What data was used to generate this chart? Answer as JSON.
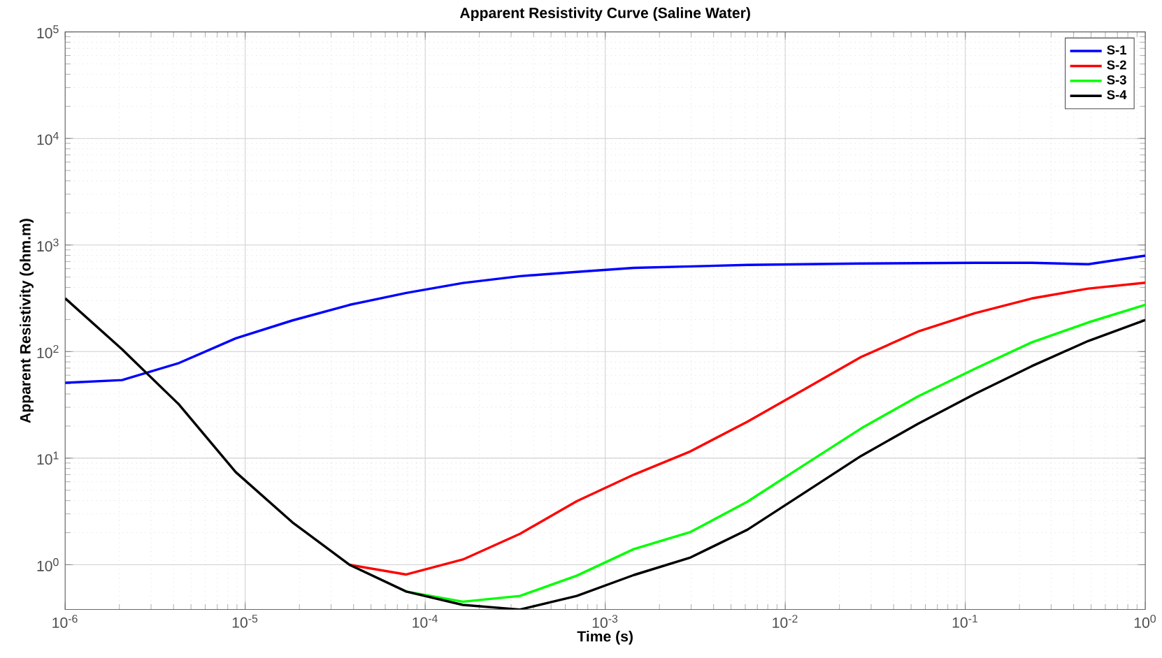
{
  "chart_data": {
    "type": "line",
    "title": "Apparent Resistivity Curve (Saline Water)",
    "xlabel": "Time (s)",
    "ylabel": "Apparent Resistivity (ohm.m)",
    "log": "xy",
    "grid": true,
    "legend": "top right",
    "x": [
      1e-06,
      2.07e-06,
      4.28e-06,
      8.86e-06,
      1.83e-05,
      3.79e-05,
      7.85e-05,
      0.000162,
      0.000336,
      0.000695,
      0.00144,
      0.00298,
      0.00616,
      0.0127,
      0.0264,
      0.0546,
      0.113,
      0.234,
      0.483,
      1
    ],
    "xlim": [
      1e-06,
      1
    ],
    "ylim": [
      0.38,
      100000
    ],
    "xticks": [
      {
        "value": 1e-06,
        "label": "10$^{-6}$"
      },
      {
        "value": 1e-05,
        "label": "10$^{-5}$"
      },
      {
        "value": 0.0001,
        "label": "10$^{-4}$"
      },
      {
        "value": 0.001,
        "label": "10$^{-3}$"
      },
      {
        "value": 0.01,
        "label": "10$^{-2}$"
      },
      {
        "value": 0.1,
        "label": "10$^{-1}$"
      },
      {
        "value": 1,
        "label": "10$^{0}$"
      }
    ],
    "yticks": [
      {
        "value": 1,
        "label": "10$^{0}$"
      },
      {
        "value": 10,
        "label": "10$^{1}$"
      },
      {
        "value": 100,
        "label": "10$^{2}$"
      },
      {
        "value": 1000,
        "label": "10$^{3}$"
      },
      {
        "value": 10000,
        "label": "10$^{4}$"
      },
      {
        "value": 100000,
        "label": "10$^{5}$"
      }
    ],
    "series": [
      {
        "name": "S-1",
        "color": "#0000ff",
        "values": [
          51,
          54,
          78,
          133,
          196,
          274,
          355,
          440,
          510,
          560,
          610,
          630,
          650,
          660,
          670,
          675,
          680,
          680,
          660,
          795
        ]
      },
      {
        "name": "S-2",
        "color": "#ff0000",
        "values": [
          null,
          null,
          null,
          null,
          null,
          1.0,
          0.81,
          1.12,
          1.95,
          3.95,
          7,
          11.6,
          22,
          44,
          89,
          154,
          229,
          315,
          390,
          443
        ]
      },
      {
        "name": "S-3",
        "color": "#00ff00",
        "values": [
          null,
          null,
          null,
          null,
          null,
          null,
          0.56,
          0.45,
          0.51,
          0.79,
          1.4,
          2.03,
          3.9,
          8.6,
          19,
          38,
          69,
          122,
          188,
          275
        ]
      },
      {
        "name": "S-4",
        "color": "#000000",
        "values": [
          316,
          105,
          32,
          7.4,
          2.5,
          1.0,
          0.56,
          0.42,
          0.38,
          0.51,
          0.8,
          1.17,
          2.13,
          4.7,
          10.5,
          21,
          40,
          73,
          126,
          198
        ]
      }
    ]
  }
}
